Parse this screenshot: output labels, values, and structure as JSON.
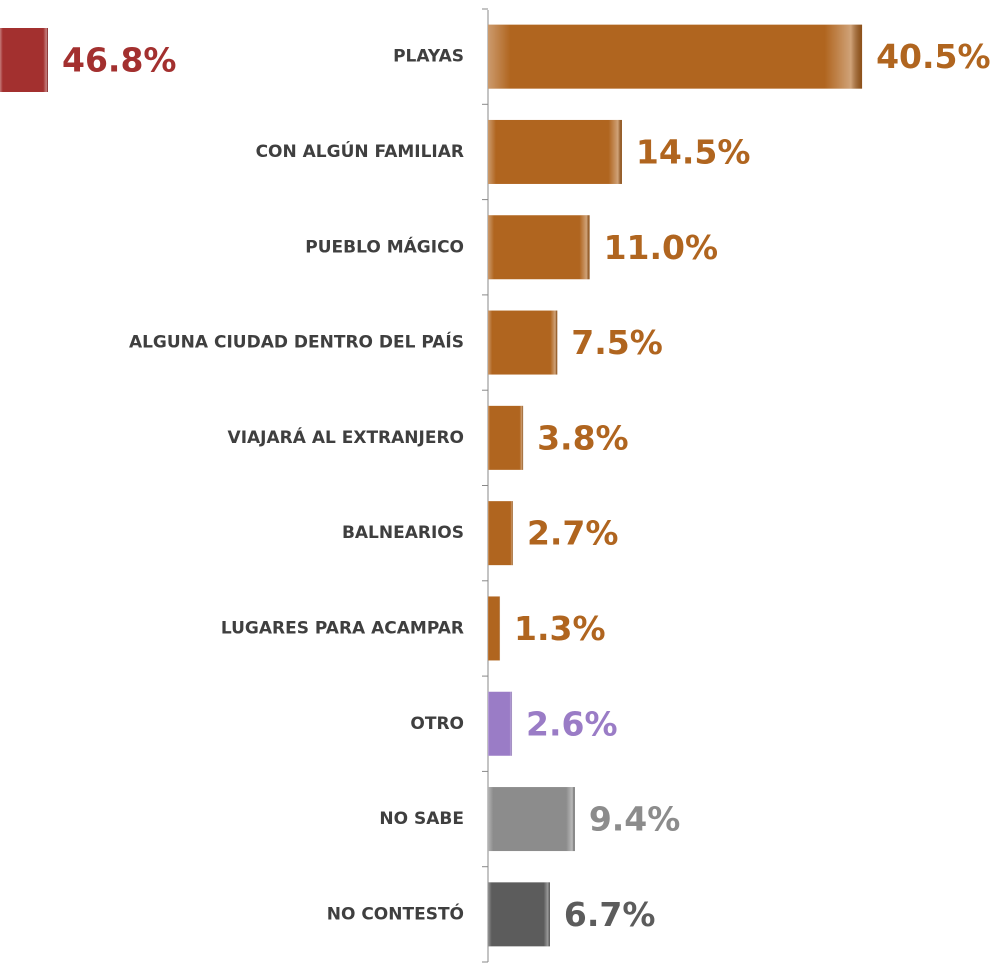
{
  "chart_data": {
    "type": "bar",
    "orientation": "horizontal",
    "categories": [
      "PLAYAS",
      "CON ALGÚN FAMILIAR",
      "PUEBLO MÁGICO",
      "ALGUNA CIUDAD DENTRO DEL PAÍS",
      "VIAJARÁ AL EXTRANJERO",
      "BALNEARIOS",
      "LUGARES PARA ACAMPAR",
      "OTRO",
      "NO SABE",
      "NO CONTESTÓ"
    ],
    "values": [
      40.5,
      14.5,
      11.0,
      7.5,
      3.8,
      2.7,
      1.3,
      2.6,
      9.4,
      6.7
    ],
    "value_labels": [
      "40.5%",
      "14.5%",
      "11.0%",
      "7.5%",
      "3.8%",
      "2.7%",
      "1.3%",
      "2.6%",
      "9.4%",
      "6.7%"
    ],
    "colors": [
      "#b0651f",
      "#b0651f",
      "#b0651f",
      "#b0651f",
      "#b0651f",
      "#b0651f",
      "#b0651f",
      "#9a7cc6",
      "#8c8c8c",
      "#5c5c5c"
    ],
    "xlim": [
      0,
      55
    ],
    "partial_bar": {
      "value": 46.8,
      "value_label": "46.8%",
      "color": "#a3302f"
    }
  }
}
